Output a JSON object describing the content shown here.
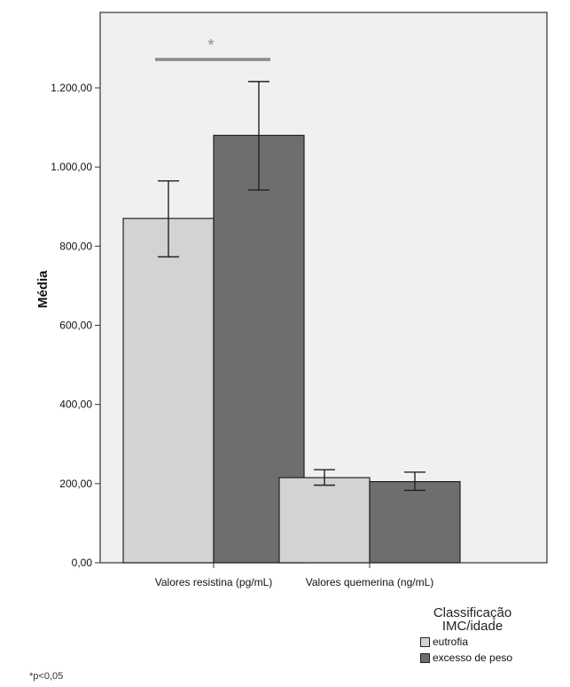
{
  "chart_data": {
    "type": "bar",
    "ylabel": "Média",
    "xlabel": "",
    "categories": [
      "Valores resistina (pg/mL)",
      "Valores quemerina (ng/mL)"
    ],
    "series": [
      {
        "name": "eutrofia",
        "color": "#d3d3d3",
        "values": [
          870,
          215
        ],
        "err_low": [
          773,
          196
        ],
        "err_high": [
          965,
          235
        ]
      },
      {
        "name": "excesso de peso",
        "color": "#6e6e6e",
        "values": [
          1080,
          205
        ],
        "err_low": [
          942,
          183
        ],
        "err_high": [
          1216,
          229
        ]
      }
    ],
    "ylim": [
      0,
      1200
    ],
    "yticks": [
      0,
      200,
      400,
      600,
      800,
      1000,
      1200
    ],
    "ytick_labels": [
      "0,00",
      "200,00",
      "400,00",
      "600,00",
      "800,00",
      "1.000,00",
      "1.200,00"
    ],
    "plot_background": "#f0f0f0",
    "significance": {
      "symbol": "*",
      "category": 0
    },
    "legend": {
      "title": "Classificação IMC/idade",
      "title_lines": [
        "Classificação",
        "IMC/idade"
      ],
      "placement": "bottom-right"
    },
    "footnote": "*p<0,05"
  }
}
